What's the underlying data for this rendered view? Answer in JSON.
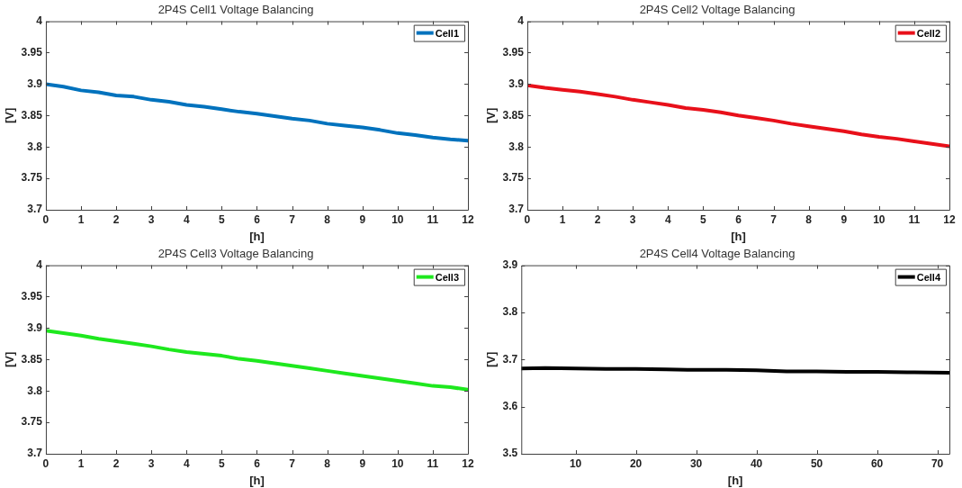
{
  "chart_data": [
    {
      "type": "line",
      "title": "2P4S Cell1 Voltage Balancing",
      "xlabel": "[h]",
      "ylabel": "[V]",
      "legend": "top right",
      "grid": false,
      "marker": "none",
      "line_style": "solid",
      "xlim": [
        0,
        12
      ],
      "xticks": [
        0,
        1,
        2,
        3,
        4,
        5,
        6,
        7,
        8,
        9,
        10,
        11,
        12
      ],
      "ylim": [
        3.7,
        4
      ],
      "yticks": [
        3.7,
        3.75,
        3.8,
        3.85,
        3.9,
        3.95,
        4
      ],
      "series": [
        {
          "name": "Cell1",
          "color": "#0072bd",
          "x": [
            0,
            0.5,
            1,
            1.5,
            2,
            2.5,
            3,
            3.5,
            4,
            4.5,
            5,
            5.5,
            6,
            6.5,
            7,
            7.5,
            8,
            8.5,
            9,
            9.5,
            10,
            10.5,
            11,
            11.5,
            12
          ],
          "values": [
            3.9,
            3.896,
            3.89,
            3.887,
            3.882,
            3.88,
            3.875,
            3.872,
            3.867,
            3.864,
            3.86,
            3.856,
            3.853,
            3.849,
            3.845,
            3.842,
            3.837,
            3.834,
            3.831,
            3.827,
            3.822,
            3.819,
            3.815,
            3.812,
            3.81
          ]
        }
      ]
    },
    {
      "type": "line",
      "title": "2P4S Cell2 Voltage Balancing",
      "xlabel": "[h]",
      "ylabel": "[V]",
      "legend": "top right",
      "grid": false,
      "marker": "none",
      "line_style": "solid",
      "xlim": [
        0,
        12
      ],
      "xticks": [
        0,
        1,
        2,
        3,
        4,
        5,
        6,
        7,
        8,
        9,
        10,
        11,
        12
      ],
      "ylim": [
        3.7,
        4
      ],
      "yticks": [
        3.7,
        3.75,
        3.8,
        3.85,
        3.9,
        3.95,
        4
      ],
      "series": [
        {
          "name": "Cell2",
          "color": "#e8101a",
          "x": [
            0,
            0.5,
            1,
            1.5,
            2,
            2.5,
            3,
            3.5,
            4,
            4.5,
            5,
            5.5,
            6,
            6.5,
            7,
            7.5,
            8,
            8.5,
            9,
            9.5,
            10,
            10.5,
            11,
            11.5,
            12
          ],
          "values": [
            3.898,
            3.894,
            3.891,
            3.888,
            3.884,
            3.88,
            3.875,
            3.871,
            3.867,
            3.862,
            3.859,
            3.855,
            3.85,
            3.846,
            3.842,
            3.837,
            3.833,
            3.829,
            3.825,
            3.82,
            3.816,
            3.813,
            3.809,
            3.805,
            3.801
          ]
        }
      ]
    },
    {
      "type": "line",
      "title": "2P4S Cell3 Voltage Balancing",
      "xlabel": "[h]",
      "ylabel": "[V]",
      "legend": "top right",
      "grid": false,
      "marker": "none",
      "line_style": "solid",
      "xlim": [
        0,
        12
      ],
      "xticks": [
        0,
        1,
        2,
        3,
        4,
        5,
        6,
        7,
        8,
        9,
        10,
        11,
        12
      ],
      "ylim": [
        3.7,
        4
      ],
      "yticks": [
        3.7,
        3.75,
        3.8,
        3.85,
        3.9,
        3.95,
        4
      ],
      "series": [
        {
          "name": "Cell3",
          "color": "#1ee81e",
          "x": [
            0,
            0.5,
            1,
            1.5,
            2,
            2.5,
            3,
            3.5,
            4,
            4.5,
            5,
            5.5,
            6,
            6.5,
            7,
            7.5,
            8,
            8.5,
            9,
            9.5,
            10,
            10.5,
            11,
            11.5,
            12
          ],
          "values": [
            3.896,
            3.892,
            3.888,
            3.883,
            3.879,
            3.875,
            3.871,
            3.866,
            3.862,
            3.859,
            3.856,
            3.851,
            3.848,
            3.844,
            3.84,
            3.836,
            3.832,
            3.828,
            3.824,
            3.82,
            3.816,
            3.812,
            3.808,
            3.806,
            3.802
          ]
        }
      ]
    },
    {
      "type": "line",
      "title": "2P4S Cell4 Voltage Balancing",
      "xlabel": "[h]",
      "ylabel": "[V]",
      "legend": "top right",
      "grid": false,
      "marker": "none",
      "line_style": "solid",
      "xlim": [
        1,
        72
      ],
      "xticks": [
        10,
        20,
        30,
        40,
        50,
        60,
        70
      ],
      "ylim": [
        3.5,
        3.9
      ],
      "yticks": [
        3.5,
        3.6,
        3.7,
        3.8,
        3.9
      ],
      "series": [
        {
          "name": "Cell4",
          "color": "#000000",
          "x": [
            1,
            5,
            10,
            15,
            20,
            25,
            30,
            35,
            40,
            45,
            50,
            55,
            60,
            65,
            72
          ],
          "values": [
            3.681,
            3.682,
            3.681,
            3.68,
            3.68,
            3.679,
            3.678,
            3.678,
            3.677,
            3.675,
            3.675,
            3.674,
            3.674,
            3.673,
            3.672
          ]
        }
      ]
    }
  ]
}
